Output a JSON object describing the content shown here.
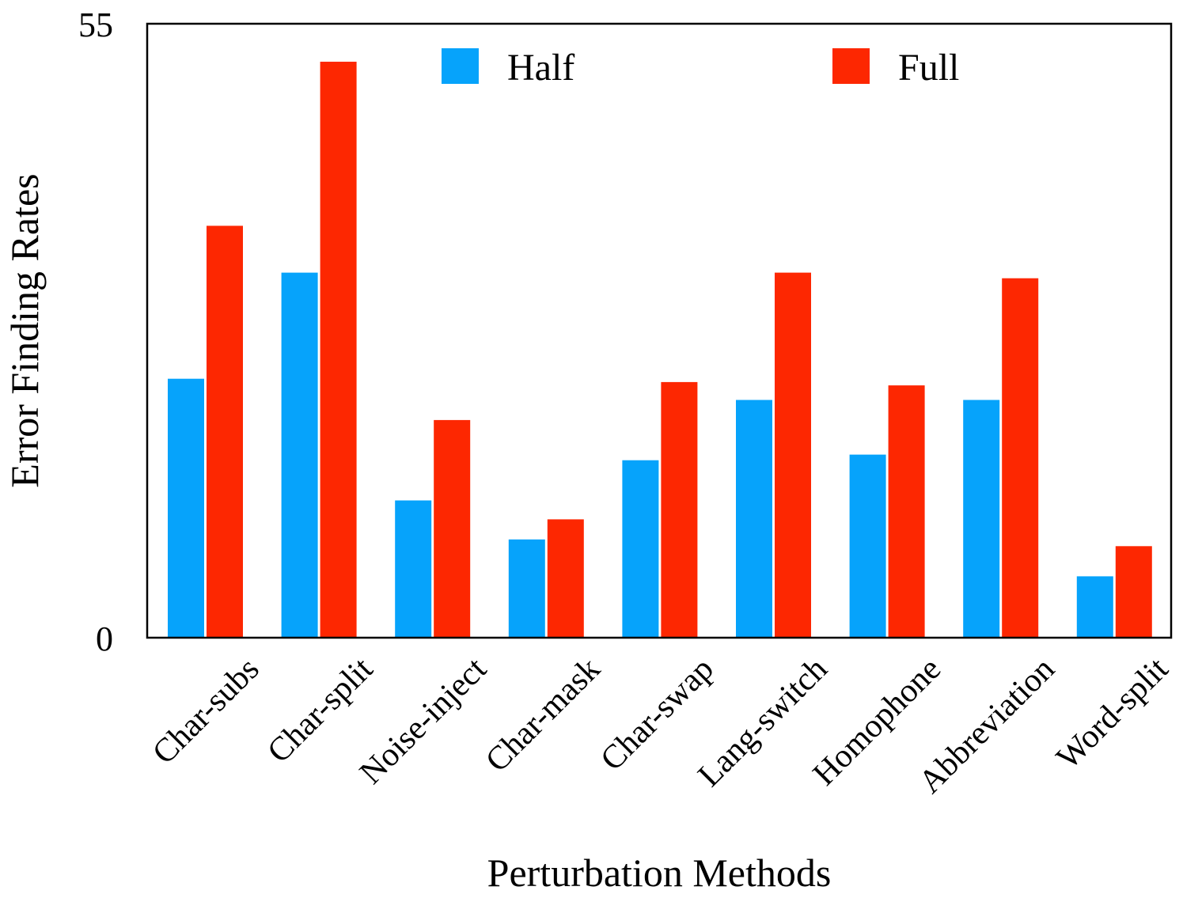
{
  "chart_data": {
    "type": "bar",
    "title": "",
    "xlabel": "Perturbation Methods",
    "ylabel": "Error Finding Rates",
    "ylim": [
      0,
      55
    ],
    "yticks": [
      "0",
      "55"
    ],
    "grid": false,
    "legend_position": "top",
    "categories": [
      "Char-subs",
      "Char-split",
      "Noise-inject",
      "Char-mask",
      "Char-swap",
      "Lang-switch",
      "Homophone",
      "Abbreviation",
      "Word-split"
    ],
    "series": [
      {
        "name": "Half",
        "color": "#06a3fb",
        "values": [
          23.2,
          32.7,
          12.3,
          8.8,
          15.9,
          21.3,
          16.4,
          21.3,
          5.5
        ]
      },
      {
        "name": "Full",
        "color": "#fd2701",
        "values": [
          36.9,
          51.6,
          19.5,
          10.6,
          22.9,
          32.7,
          22.6,
          32.2,
          8.2
        ]
      }
    ]
  }
}
